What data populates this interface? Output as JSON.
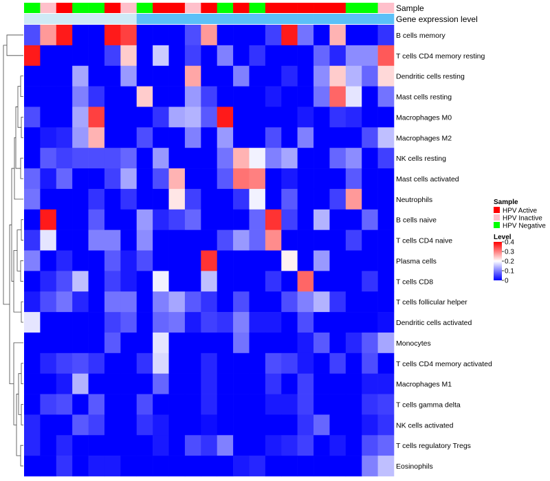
{
  "chart_data": {
    "type": "heatmap",
    "row_names": [
      "B cells memory",
      "T cells CD4 memory resting",
      "Dendritic cells resting",
      "Mast cells resting",
      "Macrophages M0",
      "Macrophages M2",
      "NK cells resting",
      "Mast cells activated",
      "Neutrophils",
      "B cells naive",
      "T cells CD4 naive",
      "Plasma cells",
      "T cells CD8",
      "T cells follicular helper",
      "Dendritic cells activated",
      "Monocytes",
      "T cells CD4 memory activated",
      "Macrophages M1",
      "T cells gamma delta",
      "NK cells activated",
      "T cells regulatory  Tregs",
      "Eosinophils"
    ],
    "column_annotations": [
      {
        "name": "Sample",
        "values": [
          "HPV Negative",
          "HPV Inactive",
          "HPV Active",
          "HPV Negative",
          "HPV Negative",
          "HPV Active",
          "HPV Inactive",
          "HPV Negative",
          "HPV Active",
          "HPV Active",
          "HPV Inactive",
          "HPV Active",
          "HPV Negative",
          "HPV Active",
          "HPV Negative",
          "HPV Active",
          "HPV Active",
          "HPV Active",
          "HPV Active",
          "HPV Active",
          "HPV Negative",
          "HPV Negative",
          "HPV Inactive"
        ]
      },
      {
        "name": "Gene expression level",
        "values": [
          "low",
          "low",
          "low",
          "low",
          "low",
          "low",
          "low",
          "high",
          "high",
          "high",
          "high",
          "high",
          "high",
          "high",
          "high",
          "high",
          "high",
          "high",
          "high",
          "high",
          "high",
          "high",
          "high"
        ]
      }
    ],
    "values": [
      [
        0.06,
        0.28,
        0.38,
        0.0,
        0.0,
        0.38,
        0.35,
        0.0,
        0.0,
        0.0,
        0.06,
        0.28,
        0.0,
        0.0,
        0.0,
        0.05,
        0.38,
        0.09,
        0.0,
        0.26,
        0.0,
        0.0,
        0.04
      ],
      [
        0.38,
        0.0,
        0.0,
        0.0,
        0.0,
        0.05,
        0.24,
        0.0,
        0.16,
        0.0,
        0.05,
        0.0,
        0.1,
        0.0,
        0.04,
        0.0,
        0.0,
        0.0,
        0.08,
        0.03,
        0.11,
        0.11,
        0.33
      ],
      [
        0.0,
        0.0,
        0.0,
        0.13,
        0.0,
        0.0,
        0.12,
        0.0,
        0.0,
        0.0,
        0.27,
        0.0,
        0.0,
        0.1,
        0.0,
        0.0,
        0.03,
        0.0,
        0.11,
        0.24,
        0.14,
        0.08,
        0.23
      ],
      [
        0.0,
        0.0,
        0.0,
        0.1,
        0.04,
        0.0,
        0.0,
        0.24,
        0.0,
        0.0,
        0.12,
        0.05,
        0.0,
        0.0,
        0.0,
        0.02,
        0.0,
        0.0,
        0.09,
        0.32,
        0.18,
        0.0,
        0.09
      ],
      [
        0.06,
        0.0,
        0.0,
        0.13,
        0.35,
        0.0,
        0.0,
        0.0,
        0.04,
        0.13,
        0.14,
        0.07,
        0.38,
        0.0,
        0.0,
        0.0,
        0.0,
        0.02,
        0.0,
        0.04,
        0.03,
        0.0,
        0.0
      ],
      [
        0.0,
        0.02,
        0.03,
        0.12,
        0.26,
        0.0,
        0.0,
        0.06,
        0.0,
        0.0,
        0.1,
        0.0,
        0.12,
        0.0,
        0.0,
        0.06,
        0.0,
        0.1,
        0.0,
        0.0,
        0.0,
        0.06,
        0.15
      ],
      [
        0.0,
        0.07,
        0.05,
        0.06,
        0.06,
        0.06,
        0.08,
        0.0,
        0.12,
        0.0,
        0.0,
        0.0,
        0.09,
        0.26,
        0.19,
        0.1,
        0.13,
        0.0,
        0.0,
        0.08,
        0.11,
        0.0,
        0.05
      ],
      [
        0.08,
        0.02,
        0.08,
        0.0,
        0.0,
        0.05,
        0.13,
        0.0,
        0.06,
        0.26,
        0.0,
        0.0,
        0.07,
        0.31,
        0.3,
        0.0,
        0.02,
        0.0,
        0.0,
        0.0,
        0.07,
        0.0,
        0.0
      ],
      [
        0.09,
        0.0,
        0.0,
        0.0,
        0.04,
        0.0,
        0.04,
        0.0,
        0.0,
        0.22,
        0.05,
        0.0,
        0.0,
        0.04,
        0.19,
        0.0,
        0.07,
        0.0,
        0.0,
        0.05,
        0.28,
        0.0,
        0.0
      ],
      [
        0.0,
        0.38,
        0.0,
        0.0,
        0.07,
        0.0,
        0.0,
        0.12,
        0.03,
        0.05,
        0.08,
        0.0,
        0.0,
        0.0,
        0.08,
        0.36,
        0.05,
        0.0,
        0.14,
        0.0,
        0.0,
        0.08,
        0.0
      ],
      [
        0.04,
        0.18,
        0.0,
        0.0,
        0.1,
        0.1,
        0.0,
        0.11,
        0.0,
        0.0,
        0.0,
        0.0,
        0.06,
        0.12,
        0.08,
        0.29,
        0.0,
        0.0,
        0.0,
        0.0,
        0.05,
        0.0,
        0.0
      ],
      [
        0.1,
        0.0,
        0.03,
        0.0,
        0.0,
        0.07,
        0.02,
        0.06,
        0.0,
        0.0,
        0.0,
        0.36,
        0.0,
        0.0,
        0.0,
        0.0,
        0.21,
        0.0,
        0.12,
        0.0,
        0.0,
        0.0,
        0.0
      ],
      [
        0.0,
        0.03,
        0.06,
        0.15,
        0.0,
        0.05,
        0.02,
        0.0,
        0.19,
        0.0,
        0.0,
        0.15,
        0.0,
        0.0,
        0.0,
        0.04,
        0.0,
        0.32,
        0.0,
        0.0,
        0.0,
        0.04,
        0.0
      ],
      [
        0.02,
        0.06,
        0.09,
        0.03,
        0.0,
        0.09,
        0.09,
        0.0,
        0.1,
        0.13,
        0.07,
        0.04,
        0.0,
        0.06,
        0.0,
        0.0,
        0.06,
        0.1,
        0.14,
        0.04,
        0.0,
        0.0,
        0.0
      ],
      [
        0.18,
        0.0,
        0.0,
        0.0,
        0.0,
        0.05,
        0.07,
        0.0,
        0.08,
        0.09,
        0.02,
        0.05,
        0.04,
        0.1,
        0.02,
        0.02,
        0.0,
        0.06,
        0.0,
        0.0,
        0.0,
        0.0,
        0.01
      ],
      [
        0.0,
        0.0,
        0.0,
        0.0,
        0.0,
        0.07,
        0.0,
        0.0,
        0.18,
        0.0,
        0.0,
        0.0,
        0.0,
        0.09,
        0.0,
        0.0,
        0.0,
        0.02,
        0.07,
        0.0,
        0.03,
        0.07,
        0.13
      ],
      [
        0.0,
        0.03,
        0.05,
        0.06,
        0.04,
        0.0,
        0.0,
        0.04,
        0.17,
        0.0,
        0.0,
        0.03,
        0.0,
        0.0,
        0.0,
        0.06,
        0.05,
        0.02,
        0.0,
        0.05,
        0.0,
        0.06,
        0.0
      ],
      [
        0.0,
        0.0,
        0.02,
        0.14,
        0.0,
        0.0,
        0.0,
        0.0,
        0.08,
        0.0,
        0.0,
        0.03,
        0.0,
        0.0,
        0.0,
        0.04,
        0.0,
        0.05,
        0.0,
        0.0,
        0.0,
        0.02,
        0.02
      ],
      [
        0.0,
        0.05,
        0.06,
        0.0,
        0.07,
        0.0,
        0.0,
        0.06,
        0.0,
        0.0,
        0.0,
        0.03,
        0.0,
        0.0,
        0.0,
        0.02,
        0.02,
        0.05,
        0.0,
        0.0,
        0.0,
        0.04,
        0.05
      ],
      [
        0.03,
        0.0,
        0.0,
        0.07,
        0.05,
        0.0,
        0.0,
        0.04,
        0.02,
        0.0,
        0.0,
        0.01,
        0.0,
        0.0,
        0.0,
        0.0,
        0.0,
        0.04,
        0.08,
        0.0,
        0.0,
        0.02,
        0.04
      ],
      [
        0.03,
        0.0,
        0.03,
        0.0,
        0.0,
        0.0,
        0.0,
        0.0,
        0.02,
        0.0,
        0.06,
        0.04,
        0.1,
        0.0,
        0.0,
        0.02,
        0.03,
        0.05,
        0.0,
        0.02,
        0.0,
        0.06,
        0.08
      ],
      [
        0.0,
        0.0,
        0.04,
        0.0,
        0.02,
        0.02,
        0.0,
        0.0,
        0.0,
        0.0,
        0.0,
        0.0,
        0.0,
        0.02,
        0.03,
        0.0,
        0.0,
        0.0,
        0.0,
        0.0,
        0.0,
        0.1,
        0.15
      ]
    ],
    "color_scale": {
      "min": 0,
      "max": 0.4,
      "colors": [
        "#0000ff",
        "#ffffff",
        "#ff0000"
      ]
    },
    "annotation_colors": {
      "Sample": {
        "HPV Active": "#ff0000",
        "HPV Inactive": "#ffc0cb",
        "HPV Negative": "#00ff00"
      },
      "Gene expression level": {
        "low": "#cfeaf6",
        "high": "#5bc0f8"
      }
    },
    "legend": {
      "position": "right",
      "sample_title": "Sample",
      "sample_entries": [
        "HPV Active",
        "HPV Inactive",
        "HPV Negative"
      ],
      "level_title": "Level",
      "level_ticks": [
        "0.4",
        "0.3",
        "0.2",
        "0.1",
        "0"
      ],
      "level_tick_values": [
        0.4,
        0.3,
        0.2,
        0.1,
        0
      ]
    },
    "row_dendrogram": true,
    "grid": false
  }
}
